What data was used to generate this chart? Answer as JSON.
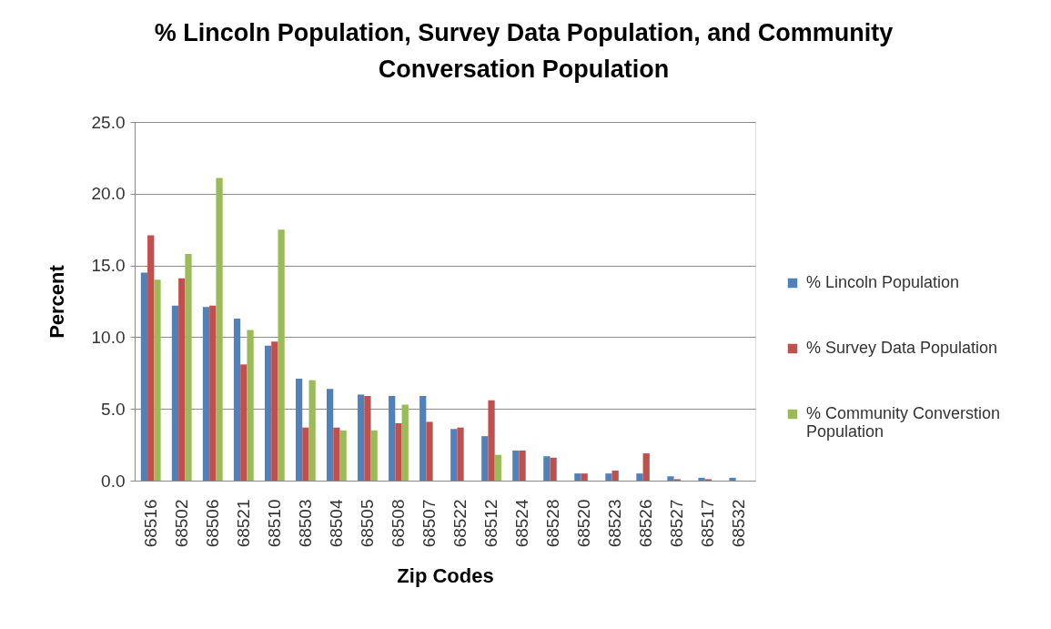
{
  "chart_data": {
    "type": "bar",
    "title": "% Lincoln Population, Survey Data Population, and Community Conversation Population",
    "xlabel": "Zip Codes",
    "ylabel": "Percent",
    "categories": [
      "68516",
      "68502",
      "68506",
      "68521",
      "68510",
      "68503",
      "68504",
      "68505",
      "68508",
      "68507",
      "68522",
      "68512",
      "68524",
      "68528",
      "68520",
      "68523",
      "68526",
      "68527",
      "68517",
      "68532"
    ],
    "series": [
      {
        "name": "% Lincoln Population",
        "color": "#4f81bd",
        "values": [
          14.5,
          12.2,
          12.1,
          11.3,
          9.4,
          7.1,
          6.4,
          6.0,
          5.9,
          5.9,
          3.6,
          3.1,
          2.1,
          1.7,
          0.5,
          0.5,
          0.5,
          0.3,
          0.2,
          0.2
        ]
      },
      {
        "name": "% Survey Data Population",
        "color": "#c0504d",
        "values": [
          17.1,
          14.1,
          12.2,
          8.1,
          9.7,
          3.7,
          3.7,
          5.9,
          4.0,
          4.1,
          3.7,
          5.6,
          2.1,
          1.6,
          0.5,
          0.7,
          1.9,
          0.1,
          0.1,
          null
        ]
      },
      {
        "name": "% Community Converstion Population",
        "color": "#9bbb59",
        "values": [
          14.0,
          15.8,
          21.1,
          10.5,
          17.5,
          7.0,
          3.5,
          3.5,
          5.3,
          null,
          null,
          1.8,
          null,
          null,
          null,
          null,
          null,
          null,
          null,
          null
        ]
      }
    ],
    "ylim": [
      0,
      25
    ],
    "yticks": [
      {
        "value": 0,
        "label": "0.0"
      },
      {
        "value": 5,
        "label": "5.0"
      },
      {
        "value": 10,
        "label": "10.0"
      },
      {
        "value": 15,
        "label": "15.0"
      },
      {
        "value": 20,
        "label": "20.0"
      },
      {
        "value": 25,
        "label": "25.0"
      }
    ],
    "grid": "y",
    "legend": "right"
  }
}
